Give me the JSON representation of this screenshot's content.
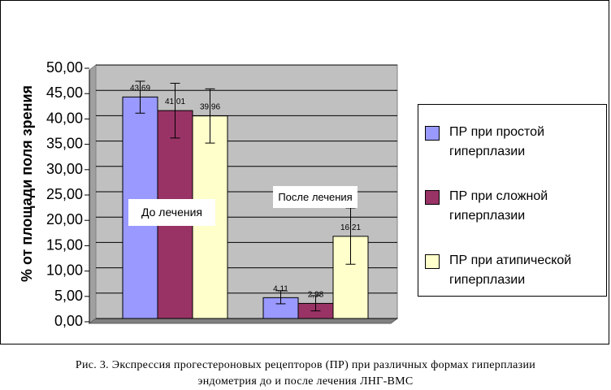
{
  "chart_data": {
    "type": "bar",
    "ylabel": "% от площади поля зрения",
    "ylim": [
      0,
      50
    ],
    "yticks": [
      "0,00",
      "5,00",
      "10,00",
      "15,00",
      "20,00",
      "25,00",
      "30,00",
      "35,00",
      "40,00",
      "45,00",
      "50,00"
    ],
    "grid": true,
    "legend_position": "right",
    "groups": [
      {
        "label": "До лечения"
      },
      {
        "label": "После лечения"
      }
    ],
    "series": [
      {
        "name": "ПР при простой гиперплазии",
        "color": "#9999ff",
        "values": [
          43.69,
          4.11
        ],
        "labels": [
          "43,69",
          "4,11"
        ],
        "err_high": [
          46.8,
          5.5
        ],
        "err_low": [
          40.5,
          2.9
        ]
      },
      {
        "name": "ПР при сложной гиперплазии",
        "color": "#993366",
        "values": [
          41.01,
          2.98
        ],
        "labels": [
          "41,01",
          "2,98"
        ],
        "err_high": [
          46.4,
          4.5
        ],
        "err_low": [
          35.6,
          1.5
        ]
      },
      {
        "name": "ПР при атипической гиперплазии",
        "color": "#ffffcc",
        "values": [
          39.96,
          16.21
        ],
        "labels": [
          "39,96",
          "16,21"
        ],
        "err_high": [
          45.3,
          21.8
        ],
        "err_low": [
          34.6,
          10.7
        ]
      }
    ]
  },
  "legend": {
    "items": [
      {
        "line1": "ПР  при  простой",
        "line2": "гиперплазии",
        "color": "#9999ff"
      },
      {
        "line1": "ПР  при  сложной",
        "line2": "гиперплазии",
        "color": "#993366"
      },
      {
        "line1": "ПР  при  атипической",
        "line2": "гиперплазии",
        "color": "#ffffcc"
      }
    ]
  },
  "caption": {
    "line1": "Рис. 3. Экспрессия прогестероновых рецепторов (ПР) при различных формах гиперплазии",
    "line2": "эндометрия до и после лечения ЛНГ-ВМС"
  },
  "colors": {
    "plot_background": "#c0c0c0",
    "grid": "#000000"
  }
}
